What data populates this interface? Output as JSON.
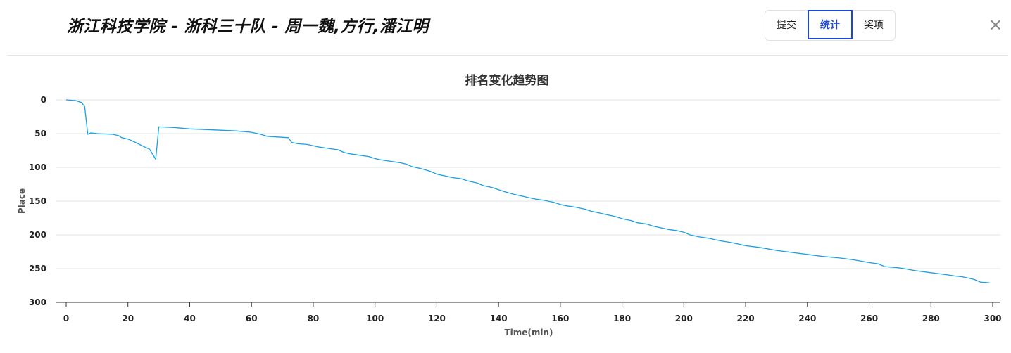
{
  "header": {
    "title": "浙江科技学院 - 浙科三十队 - 周一魏,方行,潘江明",
    "tabs": [
      {
        "label": "提交",
        "active": false
      },
      {
        "label": "统计",
        "active": true
      },
      {
        "label": "奖项",
        "active": false
      }
    ],
    "close_symbol": "×"
  },
  "colors": {
    "accent": "#1d47d6",
    "line": "#1a9fe0"
  },
  "chart_data": {
    "type": "line",
    "title": "排名变化趋势图",
    "xlabel": "Time(min)",
    "ylabel": "Place",
    "xlim": [
      0,
      300
    ],
    "ylim": [
      0,
      300
    ],
    "y_inverted": true,
    "xticks": [
      0,
      20,
      40,
      60,
      80,
      100,
      120,
      140,
      160,
      180,
      200,
      220,
      240,
      260,
      280,
      300
    ],
    "yticks": [
      0,
      50,
      100,
      150,
      200,
      250,
      300
    ],
    "grid": true,
    "legend": "none",
    "series": [
      {
        "x": [
          0,
          3,
          5,
          6,
          7,
          8,
          10,
          15,
          17,
          18,
          20,
          22,
          25,
          27,
          29,
          30,
          35,
          40,
          45,
          50,
          55,
          60,
          63,
          65,
          72,
          73,
          75,
          78,
          80,
          82,
          85,
          88,
          90,
          92,
          95,
          98,
          100,
          102,
          105,
          108,
          110,
          112,
          115,
          118,
          120,
          122,
          125,
          128,
          130,
          133,
          135,
          138,
          140,
          142,
          145,
          148,
          150,
          152,
          155,
          158,
          160,
          162,
          165,
          168,
          170,
          172,
          175,
          178,
          180,
          183,
          185,
          188,
          190,
          193,
          195,
          198,
          200,
          202,
          205,
          208,
          210,
          212,
          215,
          218,
          220,
          225,
          230,
          235,
          240,
          245,
          250,
          255,
          260,
          263,
          265,
          270,
          275,
          280,
          285,
          288,
          290,
          292,
          294,
          296,
          299
        ],
        "y": [
          0,
          1,
          4,
          10,
          51,
          49,
          50,
          51,
          53,
          56,
          58,
          62,
          69,
          73,
          88,
          40,
          41,
          43,
          44,
          45,
          46,
          48,
          51,
          54,
          56,
          63,
          65,
          66,
          68,
          70,
          72,
          74,
          78,
          80,
          82,
          84,
          87,
          89,
          91,
          93,
          95,
          99,
          102,
          106,
          110,
          112,
          115,
          117,
          120,
          123,
          127,
          130,
          133,
          136,
          140,
          143,
          145,
          147,
          149,
          152,
          155,
          157,
          159,
          162,
          165,
          167,
          170,
          173,
          176,
          179,
          182,
          184,
          187,
          190,
          192,
          194,
          196,
          200,
          203,
          205,
          207,
          209,
          211,
          214,
          216,
          219,
          223,
          226,
          229,
          232,
          234,
          237,
          241,
          243,
          247,
          249,
          253,
          256,
          259,
          261,
          262,
          264,
          266,
          270,
          271
        ]
      }
    ]
  }
}
